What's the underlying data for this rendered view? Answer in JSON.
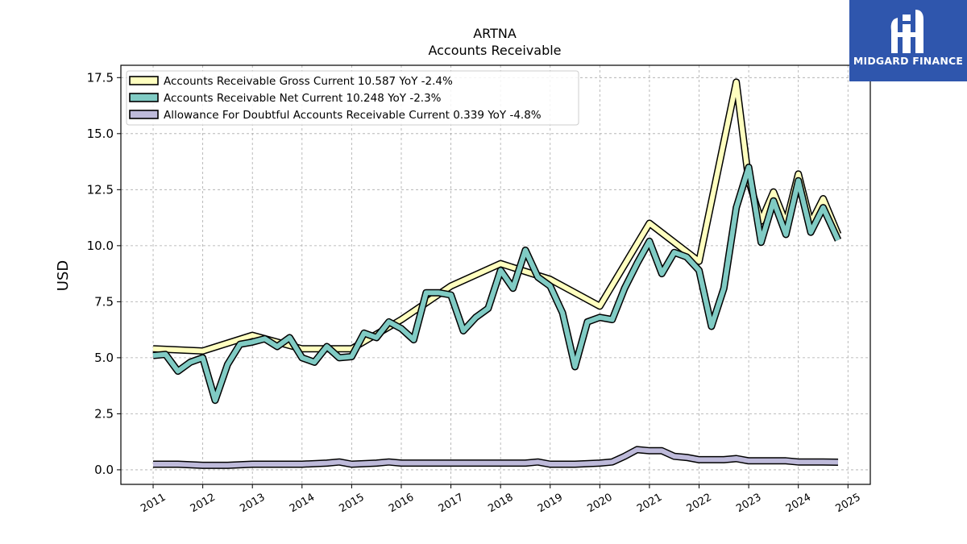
{
  "brand": {
    "name": "MIDGARD FINANCE",
    "bg_color": "#2f56ad"
  },
  "chart_data": {
    "type": "line",
    "title": "ARTNA",
    "subtitle": "Accounts Receivable",
    "ylabel": "USD",
    "xlabel": "",
    "xlim": [
      2010.35,
      2025.45
    ],
    "ylim": [
      -0.65,
      18.05
    ],
    "yticks": [
      0.0,
      2.5,
      5.0,
      7.5,
      10.0,
      12.5,
      15.0,
      17.5
    ],
    "ytick_labels": [
      "0.0",
      "2.5",
      "5.0",
      "7.5",
      "10.0",
      "12.5",
      "15.0",
      "17.5"
    ],
    "xticks": [
      2011,
      2012,
      2013,
      2014,
      2015,
      2016,
      2017,
      2018,
      2019,
      2020,
      2021,
      2022,
      2023,
      2024,
      2025
    ],
    "xtick_labels": [
      "2011",
      "2012",
      "2013",
      "2014",
      "2015",
      "2016",
      "2017",
      "2018",
      "2019",
      "2020",
      "2021",
      "2022",
      "2023",
      "2024",
      "2025"
    ],
    "grid": true,
    "legend_position": "top-left",
    "series": [
      {
        "name": "Accounts Receivable Gross Current  10.587 YoY -2.4%",
        "color": "#ffffbf",
        "x": [
          2011.0,
          2012.0,
          2013.0,
          2014.0,
          2015.0,
          2016.0,
          2017.0,
          2018.0,
          2019.0,
          2020.0,
          2021.0,
          2022.0,
          2022.75,
          2023.0,
          2023.25,
          2023.5,
          2023.75,
          2024.0,
          2024.25,
          2024.5,
          2024.8
        ],
        "y": [
          5.4,
          5.3,
          6.0,
          5.4,
          5.4,
          6.7,
          8.2,
          9.2,
          8.5,
          7.3,
          11.0,
          9.3,
          17.3,
          12.9,
          11.1,
          12.4,
          11.0,
          13.2,
          11.0,
          12.1,
          10.5
        ]
      },
      {
        "name": "Accounts Receivable Net Current  10.248 YoY -2.3%",
        "color": "#80cbc4",
        "x": [
          2011.0,
          2011.25,
          2011.5,
          2011.75,
          2012.0,
          2012.25,
          2012.5,
          2012.75,
          2013.0,
          2013.25,
          2013.5,
          2013.75,
          2014.0,
          2014.25,
          2014.5,
          2014.75,
          2015.0,
          2015.25,
          2015.5,
          2015.75,
          2016.0,
          2016.25,
          2016.5,
          2016.75,
          2017.0,
          2017.25,
          2017.5,
          2017.75,
          2018.0,
          2018.25,
          2018.5,
          2018.75,
          2019.0,
          2019.25,
          2019.5,
          2019.75,
          2020.0,
          2020.25,
          2020.5,
          2020.75,
          2021.0,
          2021.25,
          2021.5,
          2021.75,
          2022.0,
          2022.25,
          2022.5,
          2022.75,
          2023.0,
          2023.25,
          2023.5,
          2023.75,
          2024.0,
          2024.25,
          2024.5,
          2024.8
        ],
        "y": [
          5.1,
          5.15,
          4.4,
          4.8,
          5.0,
          3.1,
          4.7,
          5.6,
          5.7,
          5.85,
          5.5,
          5.9,
          5.0,
          4.8,
          5.5,
          5.0,
          5.05,
          6.1,
          5.9,
          6.6,
          6.3,
          5.8,
          7.9,
          7.9,
          7.8,
          6.2,
          6.8,
          7.2,
          8.9,
          8.1,
          9.8,
          8.6,
          8.2,
          7.0,
          4.6,
          6.6,
          6.8,
          6.7,
          8.1,
          9.2,
          10.2,
          8.75,
          9.7,
          9.5,
          8.9,
          6.4,
          8.1,
          11.7,
          13.5,
          10.15,
          12.0,
          10.5,
          12.9,
          10.6,
          11.7,
          10.25
        ]
      },
      {
        "name": "Allowance For Doubtful Accounts Receivable Current  0.339 YoY -4.8%",
        "color": "#bebada",
        "x": [
          2011.0,
          2011.5,
          2012.0,
          2012.5,
          2013.0,
          2013.5,
          2014.0,
          2014.5,
          2014.75,
          2015.0,
          2015.5,
          2015.75,
          2016.0,
          2016.5,
          2017.0,
          2017.5,
          2018.0,
          2018.5,
          2018.75,
          2019.0,
          2019.5,
          2020.0,
          2020.25,
          2020.5,
          2020.75,
          2021.0,
          2021.25,
          2021.5,
          2021.75,
          2022.0,
          2022.5,
          2022.75,
          2023.0,
          2023.5,
          2023.75,
          2024.0,
          2024.25,
          2024.5,
          2024.8
        ],
        "y": [
          0.25,
          0.25,
          0.2,
          0.2,
          0.25,
          0.25,
          0.25,
          0.3,
          0.35,
          0.25,
          0.3,
          0.35,
          0.3,
          0.3,
          0.3,
          0.3,
          0.3,
          0.3,
          0.35,
          0.25,
          0.25,
          0.3,
          0.35,
          0.6,
          0.9,
          0.85,
          0.85,
          0.6,
          0.55,
          0.45,
          0.45,
          0.5,
          0.4,
          0.4,
          0.4,
          0.35,
          0.35,
          0.35,
          0.34
        ]
      }
    ]
  }
}
